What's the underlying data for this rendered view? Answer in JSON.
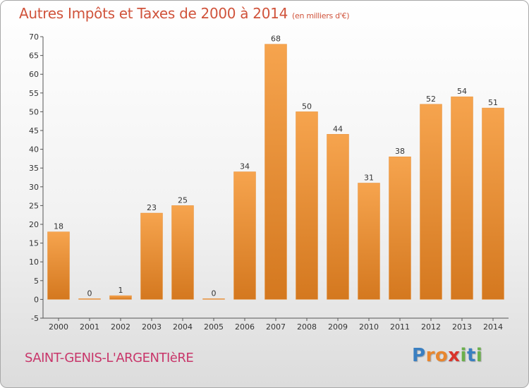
{
  "title": "Autres Impôts et Taxes de 2000 à 2014",
  "title_unit": "(en milliers d'€)",
  "town": "SAINT-GENIS-L'ARGENTIèRE",
  "logo": {
    "letters": [
      "P",
      "r",
      "o",
      "x",
      "i",
      "t",
      "i"
    ],
    "colors": [
      "#3a7fc1",
      "#e8862e",
      "#e8862e",
      "#d9342b",
      "#6ab04c",
      "#3a7fc1",
      "#6ab04c"
    ]
  },
  "colors": {
    "bar_light": "#f6a44e",
    "bar_dark": "#d4781f",
    "title": "#d0533b",
    "town": "#c8366a"
  },
  "chart_data": {
    "type": "bar",
    "title": "Autres Impôts et Taxes de 2000 à 2014",
    "subtitle": "(en milliers d'€)",
    "categories": [
      "2000",
      "2001",
      "2002",
      "2003",
      "2004",
      "2005",
      "2006",
      "2007",
      "2008",
      "2009",
      "2010",
      "2011",
      "2012",
      "2013",
      "2014"
    ],
    "values": [
      18,
      0,
      1,
      23,
      25,
      0,
      34,
      68,
      50,
      44,
      31,
      38,
      52,
      54,
      51
    ],
    "data_labels": [
      "18",
      "0",
      "1",
      "23",
      "25",
      "0",
      "34",
      "68",
      "50",
      "44",
      "31",
      "38",
      "52",
      "54",
      "51"
    ],
    "yticks": [
      -5,
      0,
      5,
      10,
      15,
      20,
      25,
      30,
      35,
      40,
      45,
      50,
      55,
      60,
      65,
      70
    ],
    "ylim": [
      -5,
      70
    ],
    "xlabel": "",
    "ylabel": "",
    "grid": false,
    "legend": "none"
  }
}
